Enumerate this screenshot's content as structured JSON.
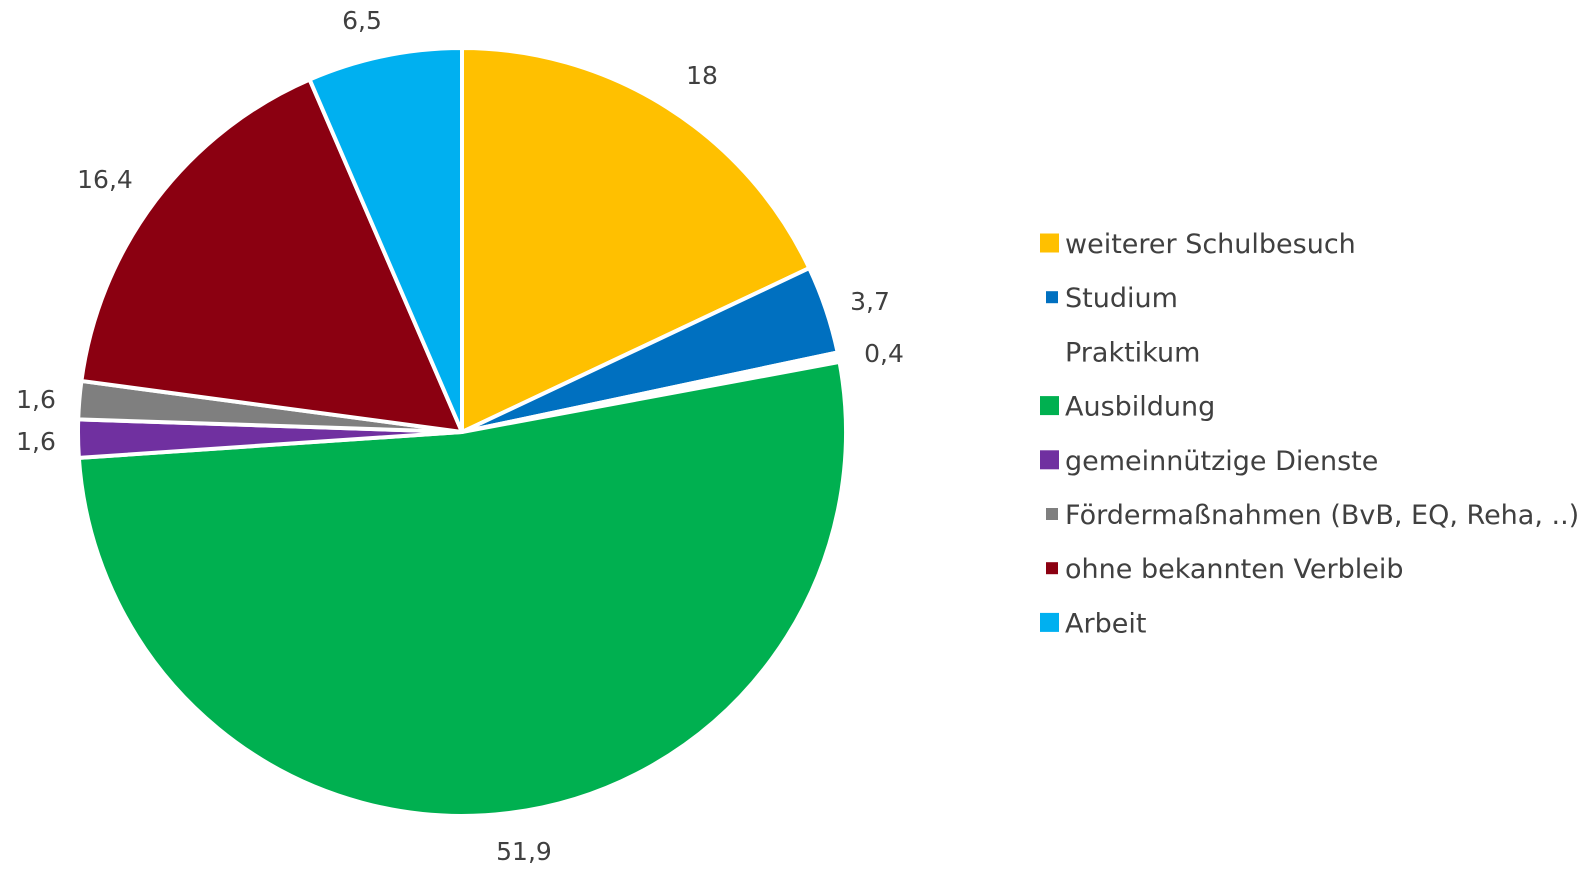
{
  "chart_data": {
    "type": "pie",
    "title": "",
    "start_angle_deg": 0,
    "direction": "clockwise",
    "legend_position": "right",
    "slices": [
      {
        "label": "weiterer Schulbesuch",
        "value": 18,
        "value_label": "18",
        "color": "#FFC000"
      },
      {
        "label": "Studium",
        "value": 3.7,
        "value_label": "3,7",
        "color": "#0070C0"
      },
      {
        "label": "Praktikum",
        "value": 0.4,
        "value_label": "0,4",
        "color": "#FFFFFF"
      },
      {
        "label": "Ausbildung",
        "value": 51.9,
        "value_label": "51,9",
        "color": "#00B050"
      },
      {
        "label": "gemeinnützige Dienste",
        "value": 1.6,
        "value_label": "1,6",
        "color": "#7030A0"
      },
      {
        "label": "Fördermaßnahmen (BvB, EQ, Reha, ..)",
        "value": 1.6,
        "value_label": "1,6",
        "color": "#7F7F7F"
      },
      {
        "label": "ohne bekannten Verbleib",
        "value": 16.4,
        "value_label": "16,4",
        "color": "#8B0011"
      },
      {
        "label": "Arbeit",
        "value": 6.5,
        "value_label": "6,5",
        "color": "#00B0F0"
      }
    ]
  }
}
